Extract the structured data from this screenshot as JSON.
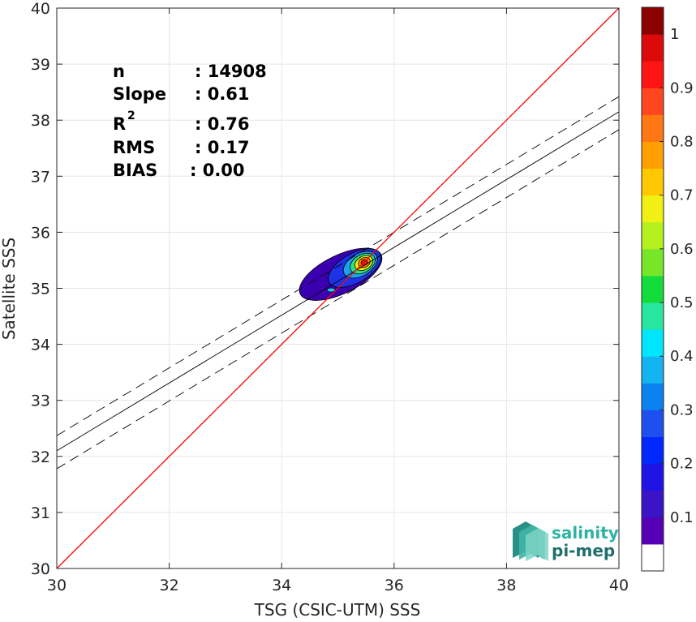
{
  "chart_data": {
    "type": "scatter",
    "subtype": "density-contour",
    "xlabel": "TSG (CSIC-UTM) SSS",
    "ylabel": "Satellite SSS",
    "xlim": [
      30,
      40
    ],
    "ylim": [
      30,
      40
    ],
    "xticks": [
      "30",
      "32",
      "34",
      "36",
      "38",
      "40"
    ],
    "yticks": [
      "30",
      "31",
      "32",
      "33",
      "34",
      "35",
      "36",
      "37",
      "38",
      "39",
      "40"
    ],
    "grid": true,
    "stats": [
      {
        "label": "n",
        "value": ": 14908"
      },
      {
        "label": "Slope",
        "value": ": 0.61"
      },
      {
        "label": "R",
        "sup": "2",
        "value": ": 0.76"
      },
      {
        "label": "RMS",
        "value": ": 0.17"
      },
      {
        "label": "BIAS",
        "value": ": 0.00"
      }
    ],
    "identity_line": {
      "x": [
        30,
        40
      ],
      "y": [
        30,
        40
      ],
      "color": "#ff0000"
    },
    "regression_line": {
      "x": [
        30,
        40
      ],
      "y": [
        32.1,
        38.15
      ],
      "color": "#000000"
    },
    "regression_band_upper": {
      "x": [
        30,
        40
      ],
      "y": [
        32.37,
        38.42
      ]
    },
    "regression_band_lower": {
      "x": [
        30,
        40
      ],
      "y": [
        31.78,
        37.83
      ]
    },
    "density_peak": {
      "x": 35.45,
      "y": 35.45,
      "level": 1.0
    },
    "contours": [
      {
        "level": 0.05,
        "color": "#3a00b0",
        "cx": 35.05,
        "cy": 35.25,
        "rx": 0.8,
        "ry": 0.34,
        "rot": -26
      },
      {
        "level": 0.2,
        "color": "#1e32e6",
        "cx": 35.3,
        "cy": 35.36,
        "rx": 0.52,
        "ry": 0.26,
        "rot": -30
      },
      {
        "level": 0.3,
        "color": "#1ea0f0",
        "cx": 35.4,
        "cy": 35.42,
        "rx": 0.33,
        "ry": 0.2,
        "rot": -30
      },
      {
        "level": 0.45,
        "color": "#2ee082",
        "cx": 35.44,
        "cy": 35.44,
        "rx": 0.24,
        "ry": 0.16,
        "rot": -30
      },
      {
        "level": 0.6,
        "color": "#f0f000",
        "cx": 35.46,
        "cy": 35.45,
        "rx": 0.17,
        "ry": 0.12,
        "rot": -30
      },
      {
        "level": 0.75,
        "color": "#ff8c00",
        "cx": 35.47,
        "cy": 35.46,
        "rx": 0.11,
        "ry": 0.085,
        "rot": -30
      },
      {
        "level": 0.9,
        "color": "#e61e1e",
        "cx": 35.47,
        "cy": 35.46,
        "rx": 0.06,
        "ry": 0.05,
        "rot": -30
      }
    ],
    "secondary_blob": {
      "cx": 34.88,
      "cy": 34.97,
      "rx": 0.07,
      "ry": 0.035,
      "color": "#1ec8f0"
    },
    "colorbar": {
      "ticks": [
        "0.1",
        "0.2",
        "0.3",
        "0.4",
        "0.5",
        "0.6",
        "0.7",
        "0.8",
        "0.9",
        "1"
      ],
      "colors": [
        "#ffffff",
        "#5500b4",
        "#3c14c8",
        "#1e14e6",
        "#0028ff",
        "#1e50f0",
        "#0a82f0",
        "#14b4f0",
        "#00e6ff",
        "#28e6a0",
        "#14dc3c",
        "#78e628",
        "#b4f01e",
        "#f0f014",
        "#ffc800",
        "#ffa000",
        "#ff7814",
        "#ff461e",
        "#ff1414",
        "#dc0a0a",
        "#8c0000"
      ]
    }
  },
  "logo": {
    "line1": "salinity",
    "line2": "pi-mep"
  }
}
